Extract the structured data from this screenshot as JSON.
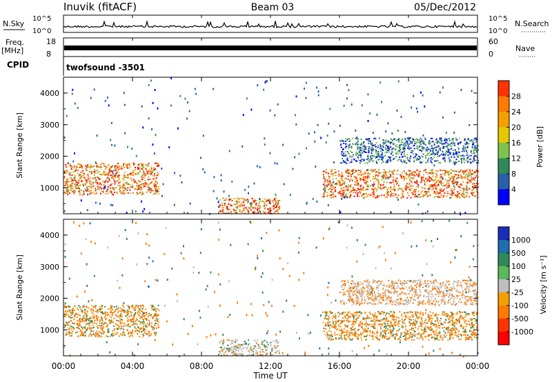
{
  "header": {
    "station": "Inuvik (fitACF)",
    "beam": "Beam 03",
    "date": "05/Dec/2012"
  },
  "noise_panel": {
    "left_label": "N.Sky",
    "left_ticks": [
      "10^5",
      "10^0"
    ],
    "right_label": "N.Search",
    "right_ticks": [
      "10^5",
      "10^0"
    ]
  },
  "freq_panel": {
    "left_label": "Freq.",
    "left_unit": "[MHz]",
    "left_ticks": [
      "18",
      "8"
    ],
    "right_label": "Nave",
    "right_ticks": [
      "60",
      "0"
    ]
  },
  "cpid_panel": {
    "label": "CPID",
    "program": "twofsound  -3501"
  },
  "power_panel": {
    "ylabel": "Slant Range [km]",
    "yticks": [
      "4000",
      "3000",
      "2000",
      "1000"
    ],
    "colorbar_label": "Power [dB]",
    "colorbar_ticks": [
      "28",
      "24",
      "20",
      "16",
      "12",
      "8",
      "4"
    ],
    "colors": [
      "#ff0000",
      "#ff3300",
      "#ff7a00",
      "#f5a000",
      "#e6c800",
      "#7fc34d",
      "#2e8b57",
      "#2a5faa",
      "#0000ff"
    ]
  },
  "velocity_panel": {
    "ylabel": "Slant Range [km]",
    "yticks": [
      "4000",
      "3000",
      "2000",
      "1000"
    ],
    "colorbar_label": "Velocity  [m s⁻¹]",
    "colorbar_ticks": [
      "1000",
      "500",
      "100",
      "25",
      "-25",
      "-100",
      "-500",
      "-1000"
    ],
    "colors": [
      "#1a2db8",
      "#1f6fb0",
      "#2e8b57",
      "#5cb85c",
      "#bebebe",
      "#f5a000",
      "#ff7a00",
      "#ff3300",
      "#ff0000"
    ]
  },
  "x_axis": {
    "ticks": [
      "00:00",
      "04:00",
      "08:00",
      "12:00",
      "16:00",
      "20:00",
      "00:00"
    ],
    "label": "Time UT"
  },
  "chart_data": {
    "type": "heatmap",
    "title": "Inuvik (fitACF)  Beam 03  05/Dec/2012",
    "x_range_hours": [
      0,
      24
    ],
    "y_range_km": [
      180,
      4500
    ],
    "power_regions": [
      {
        "t": [
          0.0,
          5.5
        ],
        "r": [
          800,
          1800
        ],
        "db": 24
      },
      {
        "t": [
          9.0,
          12.5
        ],
        "r": [
          200,
          700
        ],
        "db": 22
      },
      {
        "t": [
          15.0,
          24.0
        ],
        "r": [
          700,
          1600
        ],
        "db": 22
      },
      {
        "t": [
          16.0,
          24.0
        ],
        "r": [
          1800,
          2600
        ],
        "db": 8
      }
    ],
    "velocity_regions": [
      {
        "t": [
          0.0,
          5.5
        ],
        "r": [
          800,
          1800
        ],
        "v": -100
      },
      {
        "t": [
          9.0,
          12.5
        ],
        "r": [
          200,
          700
        ],
        "v": 0
      },
      {
        "t": [
          15.0,
          24.0
        ],
        "r": [
          700,
          1600
        ],
        "v": -100
      },
      {
        "t": [
          16.0,
          24.0
        ],
        "r": [
          1800,
          2600
        ],
        "v": 25
      }
    ]
  }
}
